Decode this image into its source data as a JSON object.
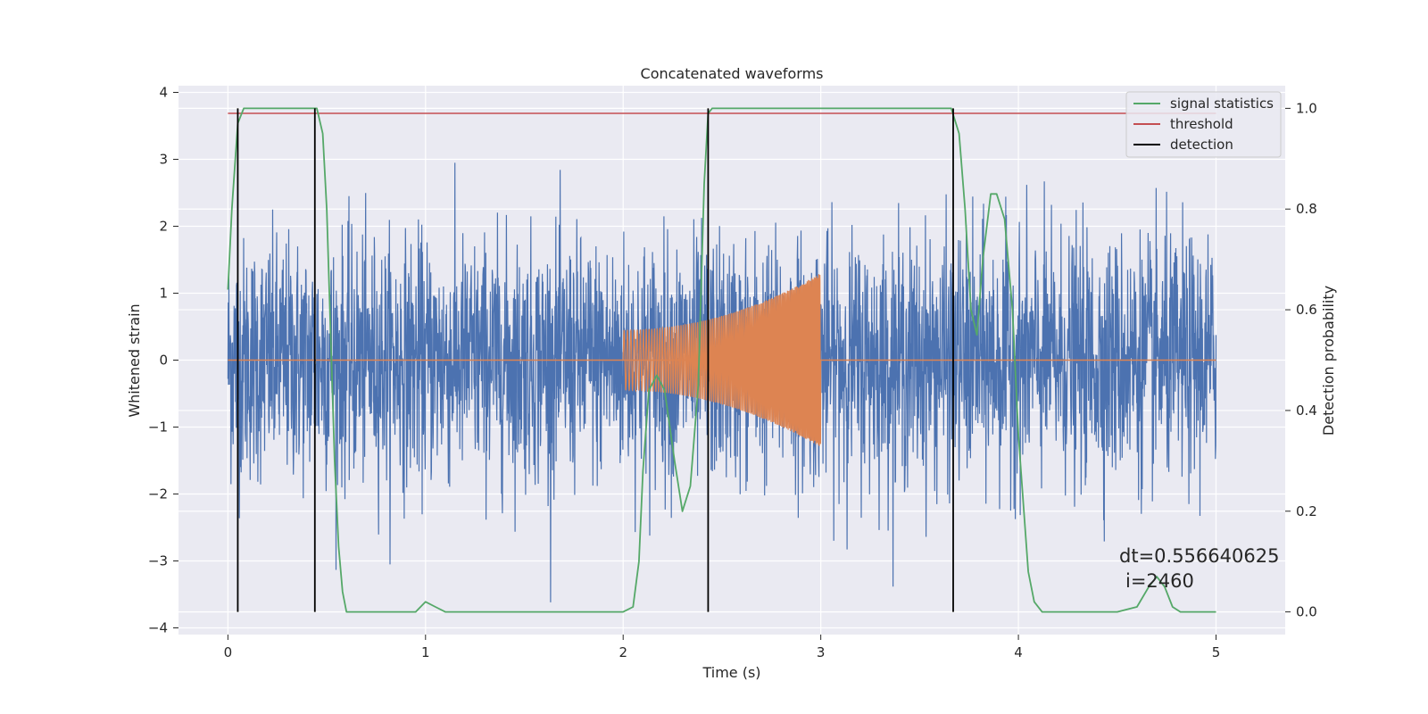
{
  "chart_data": {
    "type": "line",
    "title": "Concatenated waveforms",
    "xlabel": "Time (s)",
    "ylabel": "Whitened strain",
    "y2label": "Detection probability",
    "xlim": [
      -0.25,
      5.35
    ],
    "ylim": [
      -4.1,
      4.1
    ],
    "y2lim": [
      -0.045,
      1.045
    ],
    "xticks": [
      0,
      1,
      2,
      3,
      4,
      5
    ],
    "yticks": [
      -4,
      -3,
      -2,
      -1,
      0,
      1,
      2,
      3,
      4
    ],
    "y2ticks": [
      0.0,
      0.2,
      0.4,
      0.6,
      0.8,
      1.0
    ],
    "grid": true,
    "legend_position": "top-right",
    "colors": {
      "background": "#eaeaf2",
      "strain": "#4c72b0",
      "template": "#dd8452",
      "statistics": "#55a868",
      "threshold": "#c44e52",
      "detection": "#000000"
    },
    "series": [
      {
        "name": "",
        "role": "strain",
        "x_range": [
          0,
          5
        ],
        "approx_amplitude": 1.4
      },
      {
        "name": "",
        "role": "template",
        "x_start": 2.0,
        "x_end": 3.0,
        "start_amplitude": 0.45,
        "end_amplitude": 1.3
      },
      {
        "name": "signal statistics",
        "role": "statistics",
        "axis": "y2",
        "x": [
          0,
          0.02,
          0.05,
          0.08,
          0.1,
          0.2,
          0.3,
          0.4,
          0.45,
          0.48,
          0.5,
          0.52,
          0.54,
          0.56,
          0.58,
          0.6,
          0.65,
          0.8,
          0.95,
          1.0,
          1.05,
          1.1,
          1.2,
          1.3,
          1.5,
          1.8,
          2.0,
          2.05,
          2.08,
          2.1,
          2.13,
          2.17,
          2.21,
          2.26,
          2.3,
          2.34,
          2.38,
          2.41,
          2.43,
          2.45,
          2.5,
          3.0,
          3.5,
          3.66,
          3.7,
          3.73,
          3.76,
          3.79,
          3.82,
          3.86,
          3.89,
          3.93,
          3.97,
          4.0,
          4.05,
          4.08,
          4.12,
          4.2,
          4.5,
          4.6,
          4.66,
          4.7,
          4.74,
          4.78,
          4.82,
          4.9,
          5.0
        ],
        "y": [
          0.64,
          0.8,
          0.97,
          1.0,
          1.0,
          1.0,
          1.0,
          1.0,
          1.0,
          0.95,
          0.8,
          0.55,
          0.3,
          0.13,
          0.04,
          0.0,
          0.0,
          0.0,
          0.0,
          0.02,
          0.01,
          0.0,
          0.0,
          0.0,
          0.0,
          0.0,
          0.0,
          0.01,
          0.1,
          0.28,
          0.44,
          0.47,
          0.44,
          0.3,
          0.2,
          0.25,
          0.45,
          0.85,
          0.99,
          1.0,
          1.0,
          1.0,
          1.0,
          1.0,
          0.95,
          0.8,
          0.6,
          0.55,
          0.7,
          0.83,
          0.83,
          0.78,
          0.6,
          0.35,
          0.08,
          0.02,
          0.0,
          0.0,
          0.0,
          0.01,
          0.05,
          0.07,
          0.05,
          0.01,
          0.0,
          0.0,
          0.0
        ]
      },
      {
        "name": "threshold",
        "role": "threshold",
        "axis": "y2",
        "x": [
          0,
          5
        ],
        "y": [
          0.99,
          0.99
        ]
      },
      {
        "name": "detection",
        "role": "detection",
        "axis": "y2",
        "x": [
          0.05,
          0.44,
          2.43,
          3.67
        ],
        "y_range": [
          0,
          1.0
        ]
      }
    ],
    "annotation": {
      "line1": "dt=0.556640625",
      "line2": "i=2460"
    }
  }
}
